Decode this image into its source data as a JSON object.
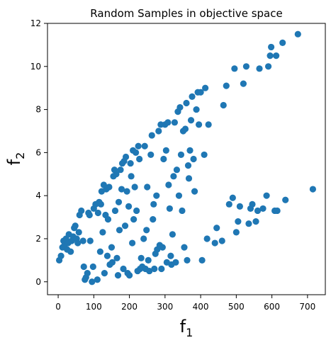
{
  "chart_data": {
    "type": "scatter",
    "title": "Random Samples in objective space",
    "xlabel": "f",
    "xlabel_subscript": "1",
    "ylabel": "f",
    "ylabel_subscript": "2",
    "xlim": [
      -30,
      750
    ],
    "ylim": [
      -0.6,
      12
    ],
    "xticks": [
      0,
      100,
      200,
      300,
      400,
      500,
      600,
      700
    ],
    "yticks": [
      0,
      2,
      4,
      6,
      8,
      10,
      12
    ],
    "grid": false,
    "marker_color": "#1f77b4",
    "series": [
      {
        "points": [
          [
            3,
            1.0
          ],
          [
            8,
            1.2
          ],
          [
            12,
            1.6
          ],
          [
            15,
            1.9
          ],
          [
            18,
            1.7
          ],
          [
            22,
            2.0
          ],
          [
            25,
            1.5
          ],
          [
            28,
            1.8
          ],
          [
            30,
            2.2
          ],
          [
            35,
            1.4
          ],
          [
            38,
            1.9
          ],
          [
            42,
            2.1
          ],
          [
            45,
            2.5
          ],
          [
            48,
            2.6
          ],
          [
            52,
            2.0
          ],
          [
            55,
            1.8
          ],
          [
            58,
            2.3
          ],
          [
            60,
            3.1
          ],
          [
            65,
            3.3
          ],
          [
            70,
            1.9
          ],
          [
            72,
            0.7
          ],
          [
            75,
            0.1
          ],
          [
            78,
            0.2
          ],
          [
            82,
            0.4
          ],
          [
            85,
            3.2
          ],
          [
            88,
            3.1
          ],
          [
            90,
            1.9
          ],
          [
            95,
            0.0
          ],
          [
            98,
            0.7
          ],
          [
            100,
            3.4
          ],
          [
            105,
            3.6
          ],
          [
            110,
            0.1
          ],
          [
            112,
            3.2
          ],
          [
            115,
            3.7
          ],
          [
            118,
            1.4
          ],
          [
            120,
            3.6
          ],
          [
            122,
            4.2
          ],
          [
            125,
            2.3
          ],
          [
            128,
            4.5
          ],
          [
            130,
            0.4
          ],
          [
            133,
            3.1
          ],
          [
            135,
            4.3
          ],
          [
            138,
            1.2
          ],
          [
            140,
            2.9
          ],
          [
            143,
            4.4
          ],
          [
            145,
            0.8
          ],
          [
            150,
            1.6
          ],
          [
            152,
            0.9
          ],
          [
            155,
            4.9
          ],
          [
            158,
            5.2
          ],
          [
            160,
            3.3
          ],
          [
            163,
            5.0
          ],
          [
            165,
            1.1
          ],
          [
            168,
            0.3
          ],
          [
            170,
            3.7
          ],
          [
            172,
            2.4
          ],
          [
            175,
            5.2
          ],
          [
            178,
            4.3
          ],
          [
            180,
            5.5
          ],
          [
            183,
            0.6
          ],
          [
            185,
            5.6
          ],
          [
            188,
            2.6
          ],
          [
            190,
            5.8
          ],
          [
            193,
            4.2
          ],
          [
            195,
            0.4
          ],
          [
            198,
            3.5
          ],
          [
            200,
            0.3
          ],
          [
            203,
            5.5
          ],
          [
            205,
            4.9
          ],
          [
            208,
            1.8
          ],
          [
            210,
            6.1
          ],
          [
            212,
            2.9
          ],
          [
            215,
            4.4
          ],
          [
            218,
            6.0
          ],
          [
            220,
            3.3
          ],
          [
            223,
            0.5
          ],
          [
            225,
            6.3
          ],
          [
            228,
            5.7
          ],
          [
            230,
            0.6
          ],
          [
            233,
            1.1
          ],
          [
            236,
            0.7
          ],
          [
            240,
            2.0
          ],
          [
            243,
            6.3
          ],
          [
            245,
            0.6
          ],
          [
            248,
            2.4
          ],
          [
            250,
            4.4
          ],
          [
            253,
            1.0
          ],
          [
            256,
            0.5
          ],
          [
            260,
            5.9
          ],
          [
            263,
            6.8
          ],
          [
            266,
            2.9
          ],
          [
            268,
            3.6
          ],
          [
            270,
            0.6
          ],
          [
            273,
            1.3
          ],
          [
            276,
            4.0
          ],
          [
            278,
            1.5
          ],
          [
            282,
            7.0
          ],
          [
            285,
            1.7
          ],
          [
            288,
            7.3
          ],
          [
            290,
            0.6
          ],
          [
            293,
            1.6
          ],
          [
            296,
            5.7
          ],
          [
            300,
            7.3
          ],
          [
            303,
            6.1
          ],
          [
            305,
            0.9
          ],
          [
            308,
            7.4
          ],
          [
            310,
            4.5
          ],
          [
            313,
            3.4
          ],
          [
            316,
            1.2
          ],
          [
            318,
            0.8
          ],
          [
            321,
            2.2
          ],
          [
            324,
            4.9
          ],
          [
            327,
            7.4
          ],
          [
            330,
            0.9
          ],
          [
            333,
            5.2
          ],
          [
            336,
            7.9
          ],
          [
            339,
            4.0
          ],
          [
            342,
            8.1
          ],
          [
            345,
            5.9
          ],
          [
            348,
            3.3
          ],
          [
            351,
            7.0
          ],
          [
            354,
            1.6
          ],
          [
            357,
            7.1
          ],
          [
            360,
            8.3
          ],
          [
            362,
            1.0
          ],
          [
            365,
            5.4
          ],
          [
            367,
            4.8
          ],
          [
            370,
            6.1
          ],
          [
            373,
            7.5
          ],
          [
            376,
            8.6
          ],
          [
            380,
            5.7
          ],
          [
            383,
            4.2
          ],
          [
            388,
            8.0
          ],
          [
            392,
            8.8
          ],
          [
            395,
            7.3
          ],
          [
            400,
            8.8
          ],
          [
            404,
            1.0
          ],
          [
            410,
            5.9
          ],
          [
            413,
            9.0
          ],
          [
            418,
            2.0
          ],
          [
            422,
            7.3
          ],
          [
            440,
            1.8
          ],
          [
            445,
            2.5
          ],
          [
            460,
            1.9
          ],
          [
            464,
            8.2
          ],
          [
            472,
            9.1
          ],
          [
            480,
            3.6
          ],
          [
            490,
            3.9
          ],
          [
            495,
            9.9
          ],
          [
            500,
            2.3
          ],
          [
            505,
            2.8
          ],
          [
            510,
            3.5
          ],
          [
            520,
            9.2
          ],
          [
            528,
            10.0
          ],
          [
            535,
            2.7
          ],
          [
            540,
            3.4
          ],
          [
            545,
            3.6
          ],
          [
            555,
            2.8
          ],
          [
            560,
            3.3
          ],
          [
            565,
            9.9
          ],
          [
            575,
            3.4
          ],
          [
            585,
            4.0
          ],
          [
            590,
            10.0
          ],
          [
            595,
            10.5
          ],
          [
            598,
            10.9
          ],
          [
            608,
            3.3
          ],
          [
            612,
            10.5
          ],
          [
            615,
            3.3
          ],
          [
            630,
            11.1
          ],
          [
            638,
            3.8
          ],
          [
            673,
            11.5
          ],
          [
            715,
            4.3
          ]
        ]
      }
    ]
  }
}
